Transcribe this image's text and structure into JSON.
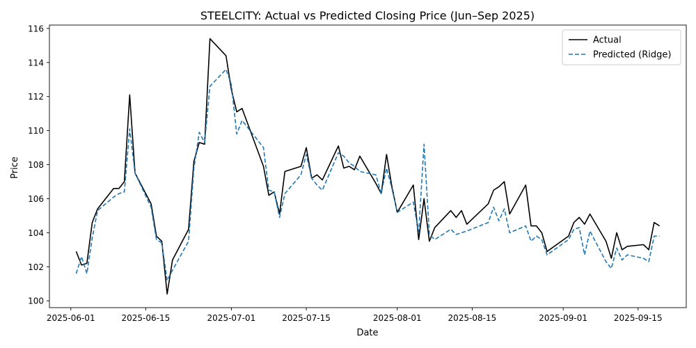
{
  "chart_data": {
    "type": "line",
    "title": "STEELCITY: Actual vs Predicted Closing Price (Jun–Sep 2025)",
    "xlabel": "Date",
    "ylabel": "Price",
    "xlim": [
      "2025-05-28",
      "2025-09-24"
    ],
    "ylim": [
      99.6,
      116.2
    ],
    "x_ticks": [
      "2025-06-01",
      "2025-06-15",
      "2025-07-01",
      "2025-07-15",
      "2025-08-01",
      "2025-08-15",
      "2025-09-01",
      "2025-09-15"
    ],
    "y_ticks": [
      100,
      102,
      104,
      106,
      108,
      110,
      112,
      114,
      116
    ],
    "grid": false,
    "legend_position": "top-right",
    "series": [
      {
        "name": "Actual",
        "color": "#000000",
        "style": "solid",
        "points": [
          [
            "2025-06-02",
            102.9
          ],
          [
            "2025-06-03",
            102.1
          ],
          [
            "2025-06-04",
            102.2
          ],
          [
            "2025-06-05",
            104.6
          ],
          [
            "2025-06-06",
            105.4
          ],
          [
            "2025-06-09",
            106.6
          ],
          [
            "2025-06-10",
            106.6
          ],
          [
            "2025-06-11",
            107.0
          ],
          [
            "2025-06-12",
            112.1
          ],
          [
            "2025-06-13",
            107.5
          ],
          [
            "2025-06-16",
            105.7
          ],
          [
            "2025-06-17",
            103.8
          ],
          [
            "2025-06-18",
            103.5
          ],
          [
            "2025-06-19",
            100.4
          ],
          [
            "2025-06-20",
            102.4
          ],
          [
            "2025-06-23",
            104.2
          ],
          [
            "2025-06-24",
            108.2
          ],
          [
            "2025-06-25",
            109.3
          ],
          [
            "2025-06-26",
            109.2
          ],
          [
            "2025-06-27",
            115.4
          ],
          [
            "2025-06-30",
            114.4
          ],
          [
            "2025-07-01",
            112.4
          ],
          [
            "2025-07-02",
            111.1
          ],
          [
            "2025-07-03",
            111.3
          ],
          [
            "2025-07-07",
            107.9
          ],
          [
            "2025-07-08",
            106.2
          ],
          [
            "2025-07-09",
            106.4
          ],
          [
            "2025-07-10",
            105.1
          ],
          [
            "2025-07-11",
            107.6
          ],
          [
            "2025-07-14",
            107.9
          ],
          [
            "2025-07-15",
            109.0
          ],
          [
            "2025-07-16",
            107.2
          ],
          [
            "2025-07-17",
            107.4
          ],
          [
            "2025-07-18",
            107.1
          ],
          [
            "2025-07-21",
            109.1
          ],
          [
            "2025-07-22",
            107.8
          ],
          [
            "2025-07-23",
            107.9
          ],
          [
            "2025-07-24",
            107.7
          ],
          [
            "2025-07-25",
            108.5
          ],
          [
            "2025-07-28",
            106.9
          ],
          [
            "2025-07-29",
            106.3
          ],
          [
            "2025-07-30",
            108.6
          ],
          [
            "2025-07-31",
            106.7
          ],
          [
            "2025-08-01",
            105.2
          ],
          [
            "2025-08-04",
            106.8
          ],
          [
            "2025-08-05",
            103.6
          ],
          [
            "2025-08-06",
            106.0
          ],
          [
            "2025-08-07",
            103.5
          ],
          [
            "2025-08-08",
            104.3
          ],
          [
            "2025-08-11",
            105.3
          ],
          [
            "2025-08-12",
            104.9
          ],
          [
            "2025-08-13",
            105.3
          ],
          [
            "2025-08-14",
            104.5
          ],
          [
            "2025-08-18",
            105.7
          ],
          [
            "2025-08-19",
            106.5
          ],
          [
            "2025-08-20",
            106.7
          ],
          [
            "2025-08-21",
            107.0
          ],
          [
            "2025-08-22",
            105.1
          ],
          [
            "2025-08-25",
            106.8
          ],
          [
            "2025-08-26",
            104.4
          ],
          [
            "2025-08-27",
            104.4
          ],
          [
            "2025-08-28",
            104.0
          ],
          [
            "2025-08-29",
            102.9
          ],
          [
            "2025-09-02",
            103.8
          ],
          [
            "2025-09-03",
            104.6
          ],
          [
            "2025-09-04",
            104.9
          ],
          [
            "2025-09-05",
            104.5
          ],
          [
            "2025-09-06",
            105.1
          ],
          [
            "2025-09-09",
            103.5
          ],
          [
            "2025-09-10",
            102.5
          ],
          [
            "2025-09-11",
            104.0
          ],
          [
            "2025-09-12",
            103.0
          ],
          [
            "2025-09-13",
            103.2
          ],
          [
            "2025-09-16",
            103.3
          ],
          [
            "2025-09-17",
            103.0
          ],
          [
            "2025-09-18",
            104.6
          ],
          [
            "2025-09-19",
            104.4
          ]
        ]
      },
      {
        "name": "Predicted (Ridge)",
        "color": "#1f77b4",
        "style": "dashed",
        "points": [
          [
            "2025-06-02",
            101.6
          ],
          [
            "2025-06-03",
            102.6
          ],
          [
            "2025-06-04",
            101.6
          ],
          [
            "2025-06-05",
            103.7
          ],
          [
            "2025-06-06",
            105.3
          ],
          [
            "2025-06-09",
            106.1
          ],
          [
            "2025-06-10",
            106.3
          ],
          [
            "2025-06-11",
            106.4
          ],
          [
            "2025-06-12",
            110.1
          ],
          [
            "2025-06-13",
            107.5
          ],
          [
            "2025-06-16",
            105.5
          ],
          [
            "2025-06-17",
            103.6
          ],
          [
            "2025-06-18",
            103.4
          ],
          [
            "2025-06-19",
            101.2
          ],
          [
            "2025-06-20",
            101.8
          ],
          [
            "2025-06-23",
            103.5
          ],
          [
            "2025-06-24",
            107.8
          ],
          [
            "2025-06-25",
            109.9
          ],
          [
            "2025-06-26",
            109.3
          ],
          [
            "2025-06-27",
            112.6
          ],
          [
            "2025-06-30",
            113.6
          ],
          [
            "2025-07-01",
            112.7
          ],
          [
            "2025-07-02",
            109.8
          ],
          [
            "2025-07-03",
            110.6
          ],
          [
            "2025-07-07",
            109.0
          ],
          [
            "2025-07-08",
            106.5
          ],
          [
            "2025-07-09",
            106.4
          ],
          [
            "2025-07-10",
            104.9
          ],
          [
            "2025-07-11",
            106.3
          ],
          [
            "2025-07-14",
            107.4
          ],
          [
            "2025-07-15",
            108.6
          ],
          [
            "2025-07-16",
            107.2
          ],
          [
            "2025-07-17",
            106.8
          ],
          [
            "2025-07-18",
            106.5
          ],
          [
            "2025-07-21",
            108.7
          ],
          [
            "2025-07-22",
            108.5
          ],
          [
            "2025-07-23",
            108.1
          ],
          [
            "2025-07-24",
            107.9
          ],
          [
            "2025-07-25",
            107.6
          ],
          [
            "2025-07-28",
            107.4
          ],
          [
            "2025-07-29",
            106.3
          ],
          [
            "2025-07-30",
            107.8
          ],
          [
            "2025-07-31",
            106.6
          ],
          [
            "2025-08-01",
            105.2
          ],
          [
            "2025-08-04",
            105.8
          ],
          [
            "2025-08-05",
            104.0
          ],
          [
            "2025-08-06",
            109.2
          ],
          [
            "2025-08-07",
            103.9
          ],
          [
            "2025-08-08",
            103.6
          ],
          [
            "2025-08-11",
            104.2
          ],
          [
            "2025-08-12",
            103.9
          ],
          [
            "2025-08-13",
            104.0
          ],
          [
            "2025-08-14",
            104.1
          ],
          [
            "2025-08-18",
            104.6
          ],
          [
            "2025-08-19",
            105.5
          ],
          [
            "2025-08-20",
            104.7
          ],
          [
            "2025-08-21",
            105.4
          ],
          [
            "2025-08-22",
            104.0
          ],
          [
            "2025-08-25",
            104.4
          ],
          [
            "2025-08-26",
            103.5
          ],
          [
            "2025-08-27",
            103.8
          ],
          [
            "2025-08-28",
            103.6
          ],
          [
            "2025-08-29",
            102.7
          ],
          [
            "2025-09-02",
            103.6
          ],
          [
            "2025-09-03",
            104.2
          ],
          [
            "2025-09-04",
            104.3
          ],
          [
            "2025-09-05",
            102.7
          ],
          [
            "2025-09-06",
            104.1
          ],
          [
            "2025-09-09",
            102.3
          ],
          [
            "2025-09-10",
            101.9
          ],
          [
            "2025-09-11",
            103.1
          ],
          [
            "2025-09-12",
            102.4
          ],
          [
            "2025-09-13",
            102.7
          ],
          [
            "2025-09-16",
            102.5
          ],
          [
            "2025-09-17",
            102.3
          ],
          [
            "2025-09-18",
            103.8
          ],
          [
            "2025-09-19",
            103.8
          ]
        ]
      }
    ]
  }
}
